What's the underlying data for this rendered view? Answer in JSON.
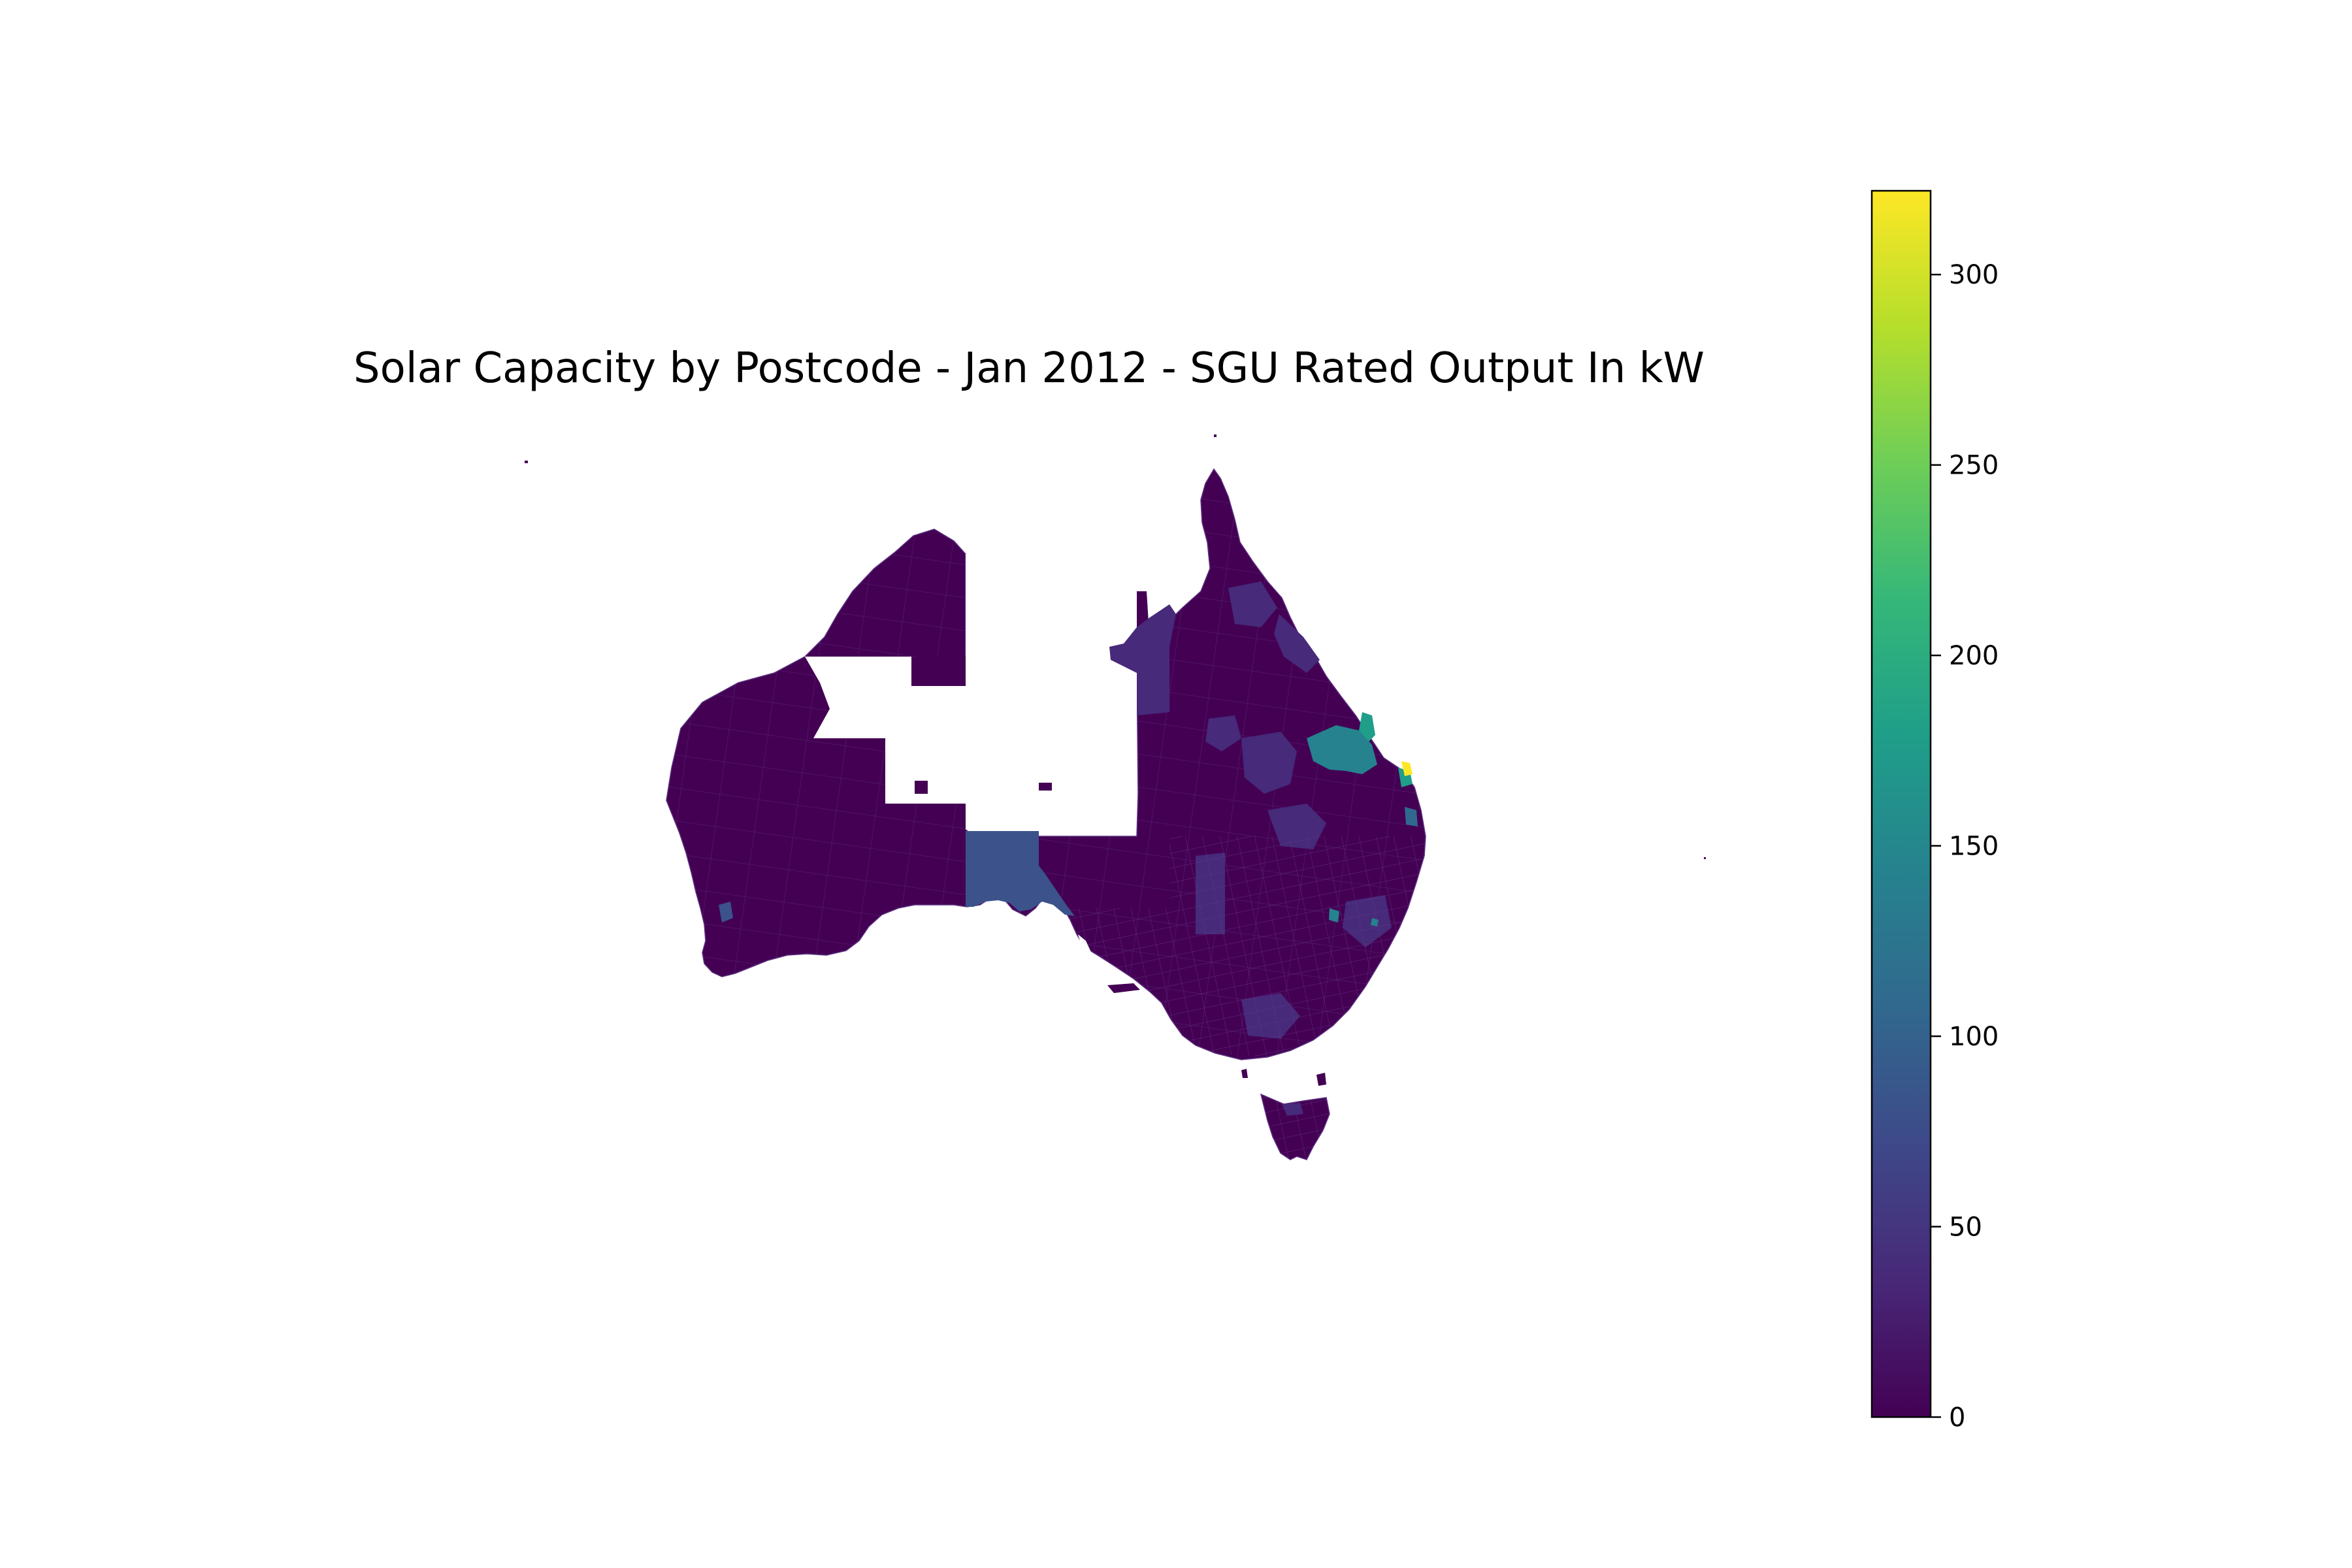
{
  "title": "Solar Capacity by Postcode - Jan 2012 - SGU Rated Output In kW",
  "colorbar": {
    "colormap": "viridis",
    "range": [
      0,
      322
    ],
    "ticks": [
      {
        "value": 0,
        "label": "0"
      },
      {
        "value": 50,
        "label": "50"
      },
      {
        "value": 100,
        "label": "100"
      },
      {
        "value": 150,
        "label": "150"
      },
      {
        "value": 200,
        "label": "200"
      },
      {
        "value": 250,
        "label": "250"
      },
      {
        "value": 300,
        "label": "300"
      }
    ],
    "stops": [
      "#440154",
      "#482878",
      "#3e4989",
      "#31688e",
      "#26828e",
      "#1f9e89",
      "#35b779",
      "#6ece58",
      "#b5de2b",
      "#fde725"
    ]
  },
  "map": {
    "region": "Australia",
    "unit": "kW",
    "colors": {
      "low": "#440154",
      "low_mid": "#472a7a",
      "mid": "#3b528b",
      "high": "#26828e",
      "peak": "#fde725"
    }
  }
}
